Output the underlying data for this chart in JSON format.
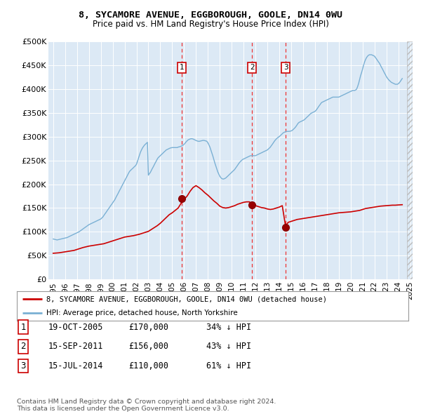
{
  "title": "8, SYCAMORE AVENUE, EGGBOROUGH, GOOLE, DN14 0WU",
  "subtitle": "Price paid vs. HM Land Registry's House Price Index (HPI)",
  "legend_line1": "8, SYCAMORE AVENUE, EGGBOROUGH, GOOLE, DN14 0WU (detached house)",
  "legend_line2": "HPI: Average price, detached house, North Yorkshire",
  "footnote": "Contains HM Land Registry data © Crown copyright and database right 2024.\nThis data is licensed under the Open Government Licence v3.0.",
  "transactions": [
    {
      "num": 1,
      "date": "19-OCT-2005",
      "price": "£170,000",
      "hpi": "34% ↓ HPI"
    },
    {
      "num": 2,
      "date": "15-SEP-2011",
      "price": "£156,000",
      "hpi": "43% ↓ HPI"
    },
    {
      "num": 3,
      "date": "15-JUL-2014",
      "price": "£110,000",
      "hpi": "61% ↓ HPI"
    }
  ],
  "sale_dates": [
    2005.8,
    2011.71,
    2014.54
  ],
  "sale_prices": [
    170000,
    156000,
    110000
  ],
  "vline_color": "#ee3333",
  "red_line_color": "#cc0000",
  "blue_line_color": "#7ab0d4",
  "ylim": [
    0,
    500000
  ],
  "yticks": [
    0,
    50000,
    100000,
    150000,
    200000,
    250000,
    300000,
    350000,
    400000,
    450000,
    500000
  ],
  "ytick_labels": [
    "£0",
    "£50K",
    "£100K",
    "£150K",
    "£200K",
    "£250K",
    "£300K",
    "£350K",
    "£400K",
    "£450K",
    "£500K"
  ],
  "plot_bg_color": "#dce9f5",
  "hpi_data_x": [
    1995,
    1995.08,
    1995.17,
    1995.25,
    1995.33,
    1995.42,
    1995.5,
    1995.58,
    1995.67,
    1995.75,
    1995.83,
    1995.92,
    1996,
    1996.08,
    1996.17,
    1996.25,
    1996.33,
    1996.42,
    1996.5,
    1996.58,
    1996.67,
    1996.75,
    1996.83,
    1996.92,
    1997,
    1997.08,
    1997.17,
    1997.25,
    1997.33,
    1997.42,
    1997.5,
    1997.58,
    1997.67,
    1997.75,
    1997.83,
    1997.92,
    1998,
    1998.08,
    1998.17,
    1998.25,
    1998.33,
    1998.42,
    1998.5,
    1998.58,
    1998.67,
    1998.75,
    1998.83,
    1998.92,
    1999,
    1999.08,
    1999.17,
    1999.25,
    1999.33,
    1999.42,
    1999.5,
    1999.58,
    1999.67,
    1999.75,
    1999.83,
    1999.92,
    2000,
    2000.08,
    2000.17,
    2000.25,
    2000.33,
    2000.42,
    2000.5,
    2000.58,
    2000.67,
    2000.75,
    2000.83,
    2000.92,
    2001,
    2001.08,
    2001.17,
    2001.25,
    2001.33,
    2001.42,
    2001.5,
    2001.58,
    2001.67,
    2001.75,
    2001.83,
    2001.92,
    2002,
    2002.08,
    2002.17,
    2002.25,
    2002.33,
    2002.42,
    2002.5,
    2002.58,
    2002.67,
    2002.75,
    2002.83,
    2002.92,
    2003,
    2003.08,
    2003.17,
    2003.25,
    2003.33,
    2003.42,
    2003.5,
    2003.58,
    2003.67,
    2003.75,
    2003.83,
    2003.92,
    2004,
    2004.08,
    2004.17,
    2004.25,
    2004.33,
    2004.42,
    2004.5,
    2004.58,
    2004.67,
    2004.75,
    2004.83,
    2004.92,
    2005,
    2005.08,
    2005.17,
    2005.25,
    2005.33,
    2005.42,
    2005.5,
    2005.58,
    2005.67,
    2005.75,
    2005.83,
    2005.92,
    2006,
    2006.08,
    2006.17,
    2006.25,
    2006.33,
    2006.42,
    2006.5,
    2006.58,
    2006.67,
    2006.75,
    2006.83,
    2006.92,
    2007,
    2007.08,
    2007.17,
    2007.25,
    2007.33,
    2007.42,
    2007.5,
    2007.58,
    2007.67,
    2007.75,
    2007.83,
    2007.92,
    2008,
    2008.08,
    2008.17,
    2008.25,
    2008.33,
    2008.42,
    2008.5,
    2008.58,
    2008.67,
    2008.75,
    2008.83,
    2008.92,
    2009,
    2009.08,
    2009.17,
    2009.25,
    2009.33,
    2009.42,
    2009.5,
    2009.58,
    2009.67,
    2009.75,
    2009.83,
    2009.92,
    2010,
    2010.08,
    2010.17,
    2010.25,
    2010.33,
    2010.42,
    2010.5,
    2010.58,
    2010.67,
    2010.75,
    2010.83,
    2010.92,
    2011,
    2011.08,
    2011.17,
    2011.25,
    2011.33,
    2011.42,
    2011.5,
    2011.58,
    2011.67,
    2011.75,
    2011.83,
    2011.92,
    2012,
    2012.08,
    2012.17,
    2012.25,
    2012.33,
    2012.42,
    2012.5,
    2012.58,
    2012.67,
    2012.75,
    2012.83,
    2012.92,
    2013,
    2013.08,
    2013.17,
    2013.25,
    2013.33,
    2013.42,
    2013.5,
    2013.58,
    2013.67,
    2013.75,
    2013.83,
    2013.92,
    2014,
    2014.08,
    2014.17,
    2014.25,
    2014.33,
    2014.42,
    2014.5,
    2014.58,
    2014.67,
    2014.75,
    2014.83,
    2014.92,
    2015,
    2015.08,
    2015.17,
    2015.25,
    2015.33,
    2015.42,
    2015.5,
    2015.58,
    2015.67,
    2015.75,
    2015.83,
    2015.92,
    2016,
    2016.08,
    2016.17,
    2016.25,
    2016.33,
    2016.42,
    2016.5,
    2016.58,
    2016.67,
    2016.75,
    2016.83,
    2016.92,
    2017,
    2017.08,
    2017.17,
    2017.25,
    2017.33,
    2017.42,
    2017.5,
    2017.58,
    2017.67,
    2017.75,
    2017.83,
    2017.92,
    2018,
    2018.08,
    2018.17,
    2018.25,
    2018.33,
    2018.42,
    2018.5,
    2018.58,
    2018.67,
    2018.75,
    2018.83,
    2018.92,
    2019,
    2019.08,
    2019.17,
    2019.25,
    2019.33,
    2019.42,
    2019.5,
    2019.58,
    2019.67,
    2019.75,
    2019.83,
    2019.92,
    2020,
    2020.08,
    2020.17,
    2020.25,
    2020.33,
    2020.42,
    2020.5,
    2020.58,
    2020.67,
    2020.75,
    2020.83,
    2020.92,
    2021,
    2021.08,
    2021.17,
    2021.25,
    2021.33,
    2021.42,
    2021.5,
    2021.58,
    2021.67,
    2021.75,
    2021.83,
    2021.92,
    2022,
    2022.08,
    2022.17,
    2022.25,
    2022.33,
    2022.42,
    2022.5,
    2022.58,
    2022.67,
    2022.75,
    2022.83,
    2022.92,
    2023,
    2023.08,
    2023.17,
    2023.25,
    2023.33,
    2023.42,
    2023.5,
    2023.58,
    2023.67,
    2023.75,
    2023.83,
    2023.92,
    2024,
    2024.08,
    2024.17,
    2024.25,
    2024.33
  ],
  "hpi_data_y": [
    85000,
    84500,
    84000,
    83500,
    83000,
    83500,
    84000,
    84500,
    85000,
    85500,
    86000,
    86500,
    87000,
    87500,
    88000,
    89000,
    90000,
    91000,
    92000,
    93000,
    94000,
    95000,
    96000,
    97000,
    98000,
    99000,
    100000,
    101500,
    103000,
    104500,
    106000,
    107500,
    109000,
    110500,
    112000,
    113500,
    115000,
    116000,
    117000,
    118000,
    119000,
    120000,
    121000,
    122000,
    123000,
    124000,
    125000,
    126000,
    127000,
    129000,
    131000,
    134000,
    137000,
    140000,
    143000,
    146000,
    149000,
    152000,
    155000,
    158000,
    161000,
    164000,
    167000,
    171000,
    175000,
    179000,
    183000,
    187000,
    191000,
    195000,
    199000,
    203000,
    207000,
    211000,
    215000,
    219000,
    223000,
    227000,
    229000,
    231000,
    233000,
    235000,
    237000,
    239000,
    242000,
    248000,
    255000,
    261000,
    267000,
    272000,
    276000,
    279000,
    282000,
    284000,
    286000,
    288000,
    219000,
    222000,
    225000,
    229000,
    233000,
    237000,
    241000,
    245000,
    249000,
    253000,
    256000,
    258000,
    260000,
    262000,
    264000,
    266000,
    268000,
    270000,
    272000,
    273000,
    274000,
    275000,
    276000,
    276500,
    277000,
    277000,
    277000,
    277000,
    277000,
    277000,
    278000,
    278500,
    279000,
    280000,
    281000,
    282000,
    284000,
    286000,
    289000,
    291000,
    293000,
    294000,
    295000,
    295500,
    295500,
    295000,
    294000,
    293000,
    292000,
    291000,
    290500,
    290000,
    290500,
    291000,
    291500,
    292000,
    292000,
    291500,
    291000,
    290000,
    287000,
    283000,
    278000,
    272000,
    266000,
    259000,
    252000,
    245000,
    238000,
    232000,
    226000,
    221000,
    217000,
    214000,
    212000,
    211000,
    211000,
    212000,
    213000,
    215000,
    217000,
    219000,
    221000,
    223000,
    225000,
    227000,
    229000,
    231000,
    234000,
    237000,
    240000,
    243000,
    246000,
    248000,
    250000,
    252000,
    253000,
    254000,
    255000,
    256000,
    257000,
    258000,
    259000,
    260000,
    260000,
    260000,
    260000,
    260000,
    260000,
    261000,
    262000,
    263000,
    264000,
    265000,
    266000,
    267000,
    268000,
    269000,
    270000,
    271000,
    272000,
    274000,
    276000,
    278000,
    281000,
    284000,
    287000,
    290000,
    293000,
    295000,
    297000,
    299000,
    300000,
    302000,
    304000,
    306000,
    308000,
    309000,
    310000,
    311000,
    311000,
    311000,
    311000,
    311500,
    312000,
    313000,
    315000,
    317000,
    319000,
    322000,
    325000,
    328000,
    330000,
    331000,
    332000,
    333000,
    334000,
    335000,
    337000,
    339000,
    341000,
    343000,
    345000,
    347000,
    349000,
    350000,
    351000,
    352000,
    353000,
    355000,
    358000,
    361000,
    364000,
    367000,
    370000,
    372000,
    373000,
    374000,
    375000,
    376000,
    377000,
    378000,
    379000,
    380000,
    381000,
    382000,
    383000,
    383000,
    383000,
    383000,
    383000,
    383000,
    383000,
    384000,
    385000,
    386000,
    387000,
    388000,
    389000,
    390000,
    391000,
    392000,
    393000,
    394000,
    395000,
    396000,
    397000,
    397000,
    397000,
    398000,
    400000,
    405000,
    412000,
    420000,
    428000,
    435000,
    442000,
    450000,
    457000,
    462000,
    466000,
    469000,
    471000,
    472000,
    472000,
    472000,
    471000,
    470000,
    469000,
    466000,
    463000,
    460000,
    457000,
    454000,
    450000,
    446000,
    442000,
    438000,
    434000,
    430000,
    426000,
    423000,
    420000,
    418000,
    416000,
    414000,
    413000,
    412000,
    411000,
    410000,
    410000,
    410000,
    411000,
    413000,
    416000,
    419000,
    422000
  ],
  "red_data_x": [
    1995,
    1995.25,
    1995.5,
    1995.75,
    1996,
    1996.25,
    1996.5,
    1996.75,
    1997,
    1997.25,
    1997.5,
    1997.75,
    1998,
    1998.25,
    1998.5,
    1998.75,
    1999,
    1999.25,
    1999.5,
    1999.75,
    2000,
    2000.25,
    2000.5,
    2000.75,
    2001,
    2001.25,
    2001.5,
    2001.75,
    2002,
    2002.25,
    2002.5,
    2002.75,
    2003,
    2003.25,
    2003.5,
    2003.75,
    2004,
    2004.25,
    2004.5,
    2004.75,
    2005,
    2005.25,
    2005.5,
    2005.75,
    2005.8,
    2006,
    2006.25,
    2006.5,
    2006.75,
    2007,
    2007.25,
    2007.5,
    2007.75,
    2008,
    2008.25,
    2008.5,
    2008.75,
    2009,
    2009.25,
    2009.5,
    2009.75,
    2010,
    2010.25,
    2010.5,
    2010.75,
    2011,
    2011.25,
    2011.5,
    2011.71,
    2012,
    2012.25,
    2012.5,
    2012.75,
    2013,
    2013.25,
    2013.5,
    2013.75,
    2014,
    2014.25,
    2014.54,
    2014.6,
    2014.75,
    2015,
    2015.25,
    2015.5,
    2015.75,
    2016,
    2016.25,
    2016.5,
    2016.75,
    2017,
    2017.25,
    2017.5,
    2017.75,
    2018,
    2018.25,
    2018.5,
    2018.75,
    2019,
    2019.25,
    2019.5,
    2019.75,
    2020,
    2020.25,
    2020.5,
    2020.75,
    2021,
    2021.25,
    2021.5,
    2021.75,
    2022,
    2022.25,
    2022.5,
    2022.75,
    2023,
    2023.25,
    2023.5,
    2023.75,
    2024,
    2024.33
  ],
  "red_data_y": [
    55000,
    55500,
    56000,
    57000,
    58000,
    59000,
    60000,
    61000,
    63000,
    65000,
    67000,
    68500,
    70000,
    71000,
    72000,
    73000,
    74000,
    75000,
    77000,
    79000,
    81000,
    83000,
    85000,
    87000,
    89000,
    90000,
    91000,
    92000,
    93500,
    95000,
    97000,
    99000,
    101000,
    105000,
    109000,
    113000,
    118000,
    124000,
    130000,
    136000,
    140000,
    145000,
    150000,
    160000,
    170000,
    168000,
    175000,
    185000,
    193000,
    197000,
    193000,
    188000,
    182000,
    177000,
    171000,
    165000,
    160000,
    154000,
    151000,
    150000,
    151000,
    153000,
    155000,
    158000,
    160000,
    162000,
    163000,
    163000,
    156000,
    155000,
    153000,
    151000,
    150000,
    148000,
    147000,
    148000,
    150000,
    152000,
    155000,
    110000,
    115000,
    120000,
    122000,
    124000,
    126000,
    127000,
    128000,
    129000,
    130000,
    131000,
    132000,
    133000,
    134000,
    135000,
    136000,
    137000,
    138000,
    139000,
    140000,
    140500,
    141000,
    141500,
    142000,
    143000,
    144000,
    145000,
    147000,
    149000,
    150000,
    151000,
    152000,
    153000,
    154000,
    154500,
    155000,
    155500,
    156000,
    156000,
    156500,
    157000
  ]
}
